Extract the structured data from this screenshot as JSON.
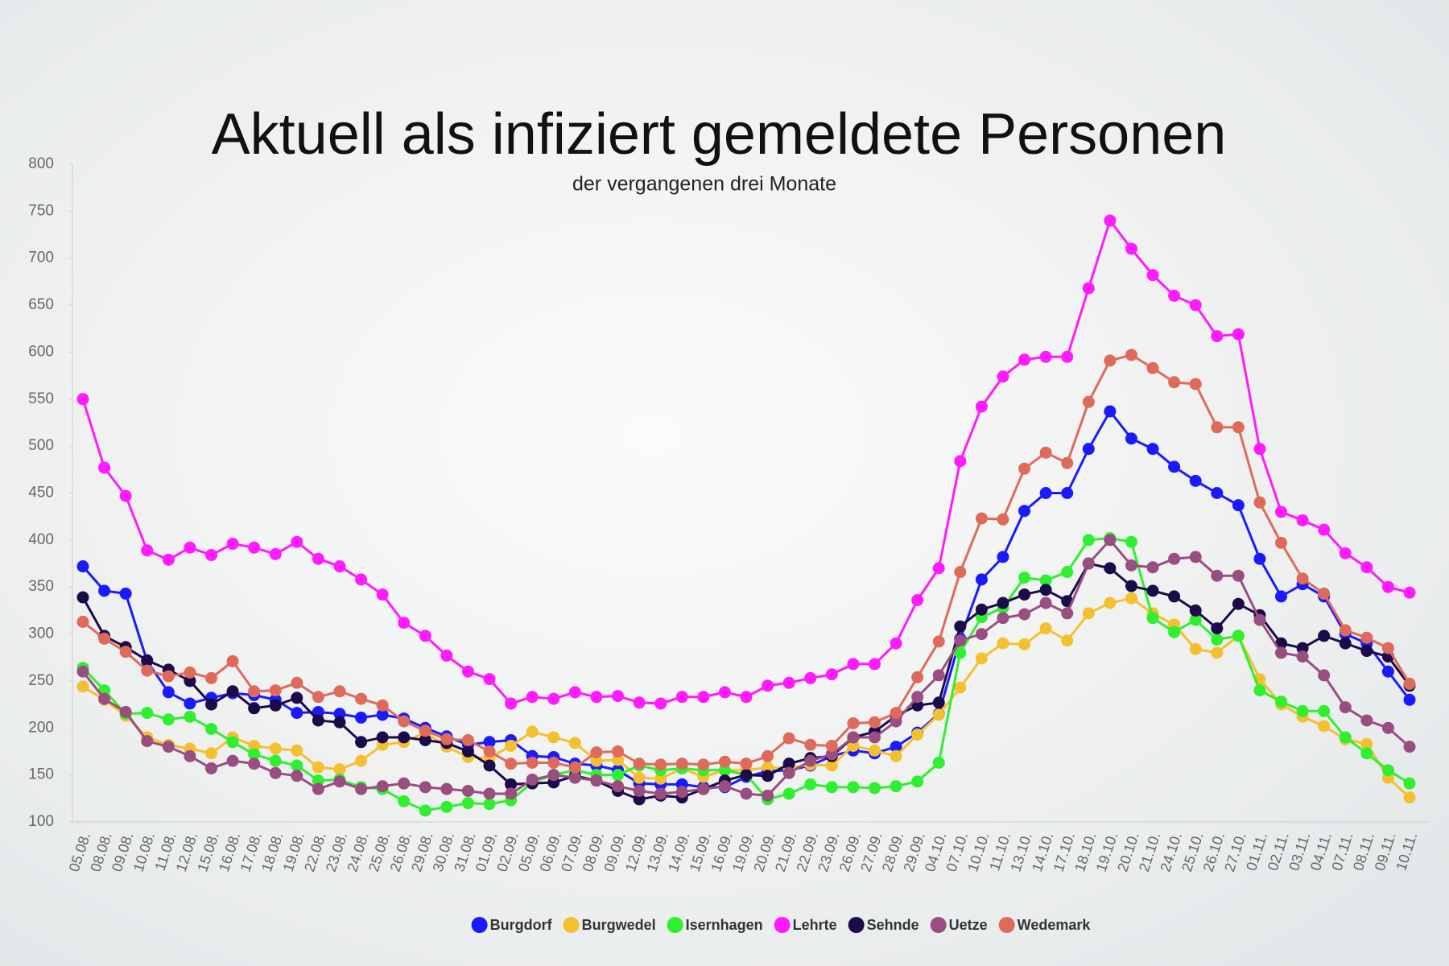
{
  "chart_data": {
    "type": "line",
    "title": "Aktuell als infiziert gemeldete Personen",
    "subtitle": "der vergangenen drei Monate",
    "categories": [
      "05.08.",
      "08.08.",
      "09.08.",
      "10.08.",
      "11.08.",
      "12.08.",
      "15.08.",
      "16.08.",
      "17.08.",
      "18.08.",
      "19.08.",
      "22.08.",
      "23.08.",
      "24.08.",
      "25.08.",
      "26.08.",
      "29.08.",
      "30.08.",
      "31.08.",
      "01.09.",
      "02.09.",
      "05.09.",
      "06.09.",
      "07.09.",
      "08.09.",
      "09.09.",
      "12.09.",
      "13.09.",
      "14.09.",
      "15.09.",
      "16.09.",
      "19.09.",
      "20.09.",
      "21.09.",
      "22.09.",
      "23.09.",
      "26.09.",
      "27.09.",
      "28.09.",
      "29.09.",
      "04.10.",
      "07.10.",
      "10.10.",
      "11.10.",
      "13.10.",
      "14.10.",
      "17.10.",
      "18.10.",
      "19.10.",
      "20.10.",
      "21.10.",
      "24.10.",
      "25.10.",
      "26.10.",
      "27.10.",
      "01.11.",
      "02.11.",
      "03.11.",
      "04.11.",
      "07.11.",
      "08.11.",
      "09.11.",
      "10.11."
    ],
    "ylim": [
      100,
      800
    ],
    "yticks": [
      100,
      150,
      200,
      250,
      300,
      350,
      400,
      450,
      500,
      550,
      600,
      650,
      700,
      750,
      800
    ],
    "series": [
      {
        "name": "Burgdorf",
        "color": "#1a1aff",
        "values": [
          372,
          346,
          343,
          271,
          238,
          226,
          232,
          237,
          235,
          230,
          216,
          217,
          215,
          211,
          214,
          210,
          200,
          191,
          182,
          185,
          187,
          170,
          169,
          162,
          160,
          155,
          141,
          140,
          140,
          137,
          137,
          148,
          154,
          155,
          160,
          170,
          176,
          173,
          180,
          195,
          215,
          295,
          358,
          382,
          431,
          450,
          450,
          497,
          537,
          508,
          497,
          478,
          463,
          450,
          437,
          380,
          340,
          353,
          340,
          300,
          290,
          260,
          230
        ]
      },
      {
        "name": "Burgwedel",
        "color": "#f5c030",
        "values": [
          244,
          230,
          213,
          190,
          182,
          178,
          173,
          190,
          181,
          178,
          176,
          158,
          156,
          165,
          182,
          185,
          195,
          180,
          169,
          168,
          181,
          196,
          190,
          184,
          165,
          166,
          147,
          146,
          157,
          148,
          155,
          155,
          158,
          157,
          161,
          160,
          181,
          176,
          170,
          193,
          214,
          243,
          274,
          290,
          289,
          306,
          293,
          322,
          333,
          338,
          322,
          310,
          284,
          280,
          298,
          252,
          225,
          212,
          202,
          188,
          183,
          147,
          126
        ]
      },
      {
        "name": "Isernhagen",
        "color": "#2ef02e",
        "values": [
          264,
          240,
          215,
          216,
          209,
          212,
          199,
          185,
          172,
          165,
          160,
          144,
          145,
          137,
          135,
          122,
          112,
          116,
          120,
          119,
          123,
          142,
          150,
          155,
          150,
          150,
          160,
          155,
          157,
          155,
          155,
          150,
          124,
          130,
          140,
          137,
          137,
          136,
          138,
          143,
          163,
          280,
          318,
          328,
          360,
          357,
          366,
          400,
          402,
          398,
          317,
          302,
          315,
          294,
          298,
          240,
          228,
          218,
          218,
          190,
          173,
          155,
          141
        ]
      },
      {
        "name": "Lehrte",
        "color": "#ff1aff",
        "values": [
          550,
          477,
          447,
          389,
          379,
          392,
          384,
          396,
          392,
          385,
          398,
          380,
          372,
          358,
          342,
          312,
          298,
          277,
          260,
          252,
          226,
          233,
          231,
          238,
          233,
          234,
          227,
          226,
          233,
          233,
          238,
          233,
          245,
          248,
          253,
          257,
          268,
          268,
          290,
          336,
          370,
          484,
          542,
          574,
          592,
          595,
          595,
          668,
          740,
          710,
          682,
          660,
          650,
          617,
          619,
          497,
          430,
          421,
          411,
          386,
          371,
          350,
          344
        ]
      },
      {
        "name": "Sehnde",
        "color": "#1c0b4a",
        "values": [
          339,
          298,
          286,
          272,
          262,
          250,
          225,
          239,
          221,
          224,
          232,
          208,
          206,
          185,
          190,
          190,
          187,
          184,
          175,
          160,
          140,
          141,
          142,
          149,
          144,
          133,
          124,
          128,
          126,
          135,
          144,
          150,
          149,
          162,
          168,
          170,
          190,
          196,
          213,
          224,
          227,
          308,
          326,
          333,
          342,
          347,
          335,
          375,
          370,
          351,
          346,
          340,
          325,
          306,
          332,
          320,
          290,
          285,
          298,
          290,
          282,
          276,
          245
        ]
      },
      {
        "name": "Uetze",
        "color": "#9a4d80",
        "values": [
          260,
          231,
          217,
          186,
          180,
          170,
          157,
          165,
          162,
          152,
          149,
          135,
          143,
          135,
          138,
          141,
          137,
          135,
          133,
          130,
          130,
          145,
          150,
          147,
          144,
          138,
          133,
          130,
          132,
          135,
          138,
          130,
          128,
          152,
          165,
          172,
          190,
          190,
          207,
          233,
          256,
          293,
          300,
          317,
          321,
          333,
          322,
          375,
          400,
          373,
          371,
          380,
          382,
          362,
          362,
          315,
          280,
          276,
          256,
          222,
          208,
          200,
          180
        ]
      },
      {
        "name": "Wedemark",
        "color": "#e06a5a",
        "values": [
          313,
          295,
          281,
          261,
          255,
          259,
          253,
          271,
          239,
          240,
          248,
          233,
          239,
          231,
          224,
          207,
          197,
          188,
          187,
          175,
          162,
          163,
          163,
          158,
          174,
          175,
          162,
          161,
          162,
          161,
          164,
          162,
          170,
          189,
          182,
          181,
          205,
          206,
          216,
          254,
          292,
          366,
          423,
          422,
          476,
          493,
          482,
          547,
          591,
          597,
          583,
          568,
          566,
          520,
          520,
          440,
          397,
          359,
          343,
          304,
          296,
          285,
          247
        ]
      }
    ]
  }
}
